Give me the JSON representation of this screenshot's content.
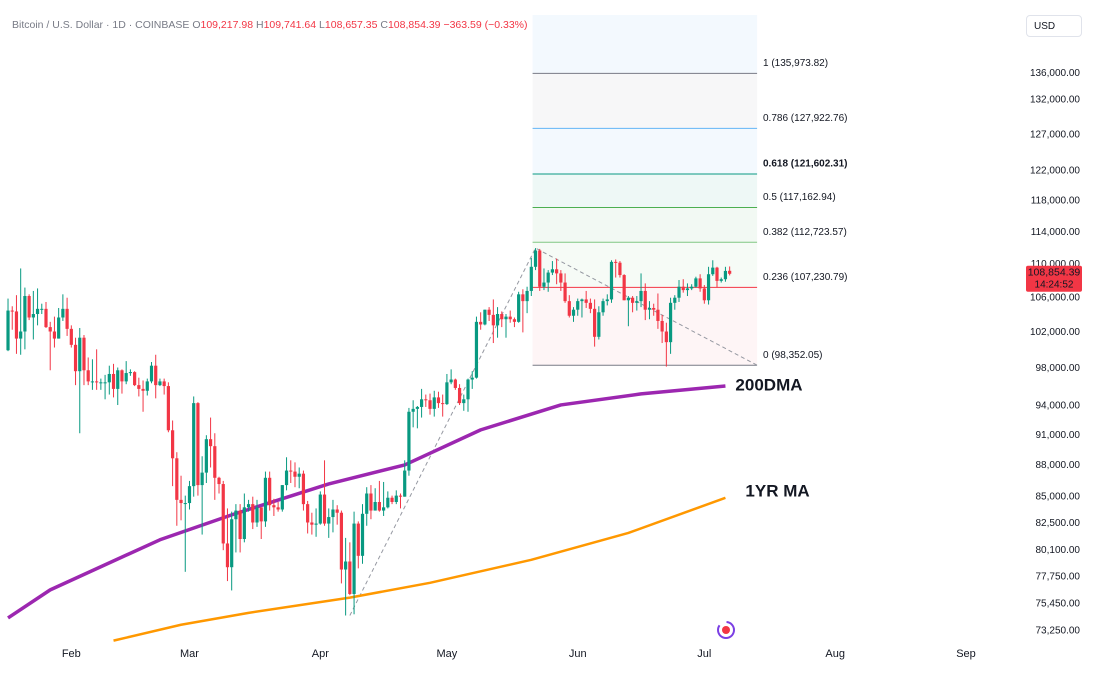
{
  "chart_data": {
    "type": "candlestick",
    "header": {
      "symbol": "Bitcoin / U.S. Dollar · 1D · COINBASE",
      "ohlc_legend": [
        {
          "key": "O",
          "value": "109,217.98"
        },
        {
          "key": "H",
          "value": "109,741.64"
        },
        {
          "key": "L",
          "value": "108,657.35"
        },
        {
          "key": "C",
          "value": "108,854.39"
        }
      ],
      "change": "−363.59 (−0.33%)"
    },
    "currency": "USD",
    "up_color": "#089981",
    "down_color": "#f23645",
    "log_scale": true,
    "xlim": [
      -1.9,
      239.8
    ],
    "xticks": [
      {
        "value": 15,
        "label": "Feb"
      },
      {
        "value": 43,
        "label": "Mar"
      },
      {
        "value": 74,
        "label": "Apr"
      },
      {
        "value": 104,
        "label": "May"
      },
      {
        "value": 135,
        "label": "Jun"
      },
      {
        "value": 165,
        "label": "Jul"
      },
      {
        "value": 196,
        "label": "Aug"
      },
      {
        "value": 227,
        "label": "Sep"
      }
    ],
    "ylim": [
      72100,
      147500
    ],
    "yticks": [
      {
        "value": 136000,
        "label": "136,000.00"
      },
      {
        "value": 132000,
        "label": "132,000.00"
      },
      {
        "value": 127000,
        "label": "127,000.00"
      },
      {
        "value": 122000,
        "label": "122,000.00"
      },
      {
        "value": 118000,
        "label": "118,000.00"
      },
      {
        "value": 114000,
        "label": "114,000.00"
      },
      {
        "value": 110000,
        "label": "110,000.00"
      },
      {
        "value": 106000,
        "label": "106,000.00"
      },
      {
        "value": 102000,
        "label": "102,000.00"
      },
      {
        "value": 98000,
        "label": "98,000.00"
      },
      {
        "value": 94000,
        "label": "94,000.00"
      },
      {
        "value": 91000,
        "label": "91,000.00"
      },
      {
        "value": 88000,
        "label": "88,000.00"
      },
      {
        "value": 85000,
        "label": "85,000.00"
      },
      {
        "value": 82500,
        "label": "82,500.00"
      },
      {
        "value": 80100,
        "label": "80,100.00"
      },
      {
        "value": 77750,
        "label": "77,750.00"
      },
      {
        "value": 75450,
        "label": "75,450.00"
      },
      {
        "value": 73250,
        "label": "73,250.00"
      }
    ],
    "last_price": {
      "value": 108854.39,
      "label": "108,854.39",
      "countdown": "14:24:52",
      "color": "#f23645"
    },
    "ohlc": [
      [
        100000,
        105900,
        99900,
        104500
      ],
      [
        104500,
        105000,
        102300,
        104400
      ],
      [
        104400,
        106300,
        99600,
        101300
      ],
      [
        101300,
        109500,
        99500,
        102100
      ],
      [
        102100,
        107200,
        100100,
        106200
      ],
      [
        106200,
        106400,
        103400,
        103700
      ],
      [
        103700,
        106800,
        101200,
        104100
      ],
      [
        104100,
        107100,
        102800,
        104700
      ],
      [
        104700,
        105300,
        104100,
        104700
      ],
      [
        104700,
        105500,
        102500,
        102600
      ],
      [
        102600,
        103200,
        97800,
        102100
      ],
      [
        102100,
        103800,
        100300,
        101300
      ],
      [
        101300,
        104800,
        101300,
        103700
      ],
      [
        103700,
        106400,
        103300,
        104700
      ],
      [
        104700,
        106000,
        101600,
        102400
      ],
      [
        102400,
        102800,
        100300,
        100600
      ],
      [
        100600,
        101400,
        96200,
        97700
      ],
      [
        97700,
        102500,
        91200,
        101400
      ],
      [
        101400,
        101700,
        96200,
        97800
      ],
      [
        97800,
        99200,
        96200,
        96600
      ],
      [
        96600,
        99000,
        95700,
        96600
      ],
      [
        96600,
        100100,
        95700,
        96500
      ],
      [
        96500,
        96900,
        95700,
        96500
      ],
      [
        96500,
        97300,
        94700,
        96500
      ],
      [
        96500,
        98300,
        95200,
        97400
      ],
      [
        97400,
        98500,
        94900,
        95800
      ],
      [
        95800,
        98100,
        94100,
        97800
      ],
      [
        97800,
        97900,
        95300,
        96600
      ],
      [
        96600,
        98800,
        96300,
        97500
      ],
      [
        97500,
        97900,
        97200,
        97600
      ],
      [
        97600,
        97700,
        96100,
        96200
      ],
      [
        96200,
        97000,
        95000,
        95800
      ],
      [
        95800,
        96700,
        93400,
        95600
      ],
      [
        95600,
        96900,
        95100,
        96600
      ],
      [
        96600,
        98700,
        96400,
        98300
      ],
      [
        98300,
        99500,
        94800,
        96200
      ],
      [
        96200,
        96900,
        96100,
        96600
      ],
      [
        96600,
        96900,
        95200,
        96100
      ],
      [
        96100,
        96500,
        91300,
        91500
      ],
      [
        91500,
        92500,
        86000,
        88700
      ],
      [
        88700,
        89300,
        82300,
        84700
      ],
      [
        84700,
        87000,
        82800,
        84400
      ],
      [
        84400,
        85100,
        78200,
        84400
      ],
      [
        84400,
        86500,
        83800,
        86000
      ],
      [
        86000,
        95000,
        85000,
        94300
      ],
      [
        94300,
        94400,
        85100,
        86100
      ],
      [
        86100,
        88900,
        81500,
        87300
      ],
      [
        87300,
        91000,
        86300,
        90600
      ],
      [
        90600,
        92800,
        87800,
        89900
      ],
      [
        89900,
        91200,
        84700,
        86800
      ],
      [
        86800,
        86900,
        85300,
        86200
      ],
      [
        86200,
        86500,
        80100,
        80700
      ],
      [
        80700,
        83900,
        77400,
        78600
      ],
      [
        78600,
        83600,
        76600,
        82900
      ],
      [
        82900,
        84300,
        79900,
        83700
      ],
      [
        83700,
        84300,
        79900,
        81100
      ],
      [
        81100,
        85300,
        80800,
        84000
      ],
      [
        84000,
        84700,
        83600,
        84300
      ],
      [
        84300,
        85000,
        82000,
        82600
      ],
      [
        82600,
        84700,
        82200,
        84000
      ],
      [
        84000,
        84000,
        81100,
        82700
      ],
      [
        82700,
        87400,
        82200,
        86800
      ],
      [
        86800,
        87400,
        83700,
        84200
      ],
      [
        84200,
        84800,
        83200,
        84000
      ],
      [
        84000,
        84500,
        83600,
        83800
      ],
      [
        83800,
        86100,
        83600,
        86100
      ],
      [
        86100,
        88800,
        85600,
        87500
      ],
      [
        87500,
        88500,
        86300,
        87400
      ],
      [
        87400,
        88300,
        85900,
        86900
      ],
      [
        86900,
        87800,
        85800,
        87200
      ],
      [
        87200,
        87500,
        83700,
        84300
      ],
      [
        84300,
        84600,
        81600,
        82600
      ],
      [
        82600,
        83500,
        81500,
        82400
      ],
      [
        82400,
        83900,
        81300,
        82500
      ],
      [
        82500,
        85500,
        82400,
        85200
      ],
      [
        85200,
        88500,
        82300,
        82500
      ],
      [
        82500,
        83900,
        81200,
        83100
      ],
      [
        83100,
        84700,
        81700,
        83800
      ],
      [
        83800,
        84200,
        82400,
        83500
      ],
      [
        83500,
        83700,
        77200,
        78400
      ],
      [
        78400,
        81200,
        74500,
        79100
      ],
      [
        79100,
        80800,
        76200,
        76300
      ],
      [
        76300,
        83600,
        74600,
        82500
      ],
      [
        82500,
        82700,
        78500,
        79600
      ],
      [
        79600,
        84300,
        78900,
        83400
      ],
      [
        83400,
        85900,
        82300,
        85300
      ],
      [
        85300,
        86100,
        82900,
        83700
      ],
      [
        83700,
        85800,
        83700,
        84500
      ],
      [
        84500,
        86500,
        83600,
        83700
      ],
      [
        83700,
        86400,
        83200,
        84000
      ],
      [
        84000,
        85500,
        83900,
        84900
      ],
      [
        84900,
        85100,
        84300,
        84500
      ],
      [
        84500,
        85600,
        84300,
        85100
      ],
      [
        85100,
        85300,
        83900,
        85000
      ],
      [
        85000,
        88500,
        85000,
        87500
      ],
      [
        87500,
        93800,
        87000,
        93400
      ],
      [
        93400,
        94600,
        91800,
        93700
      ],
      [
        93700,
        94000,
        91700,
        93900
      ],
      [
        93900,
        95800,
        92800,
        94700
      ],
      [
        94700,
        95200,
        93900,
        94600
      ],
      [
        94600,
        95300,
        93100,
        93700
      ],
      [
        93700,
        95600,
        92900,
        94900
      ],
      [
        94900,
        95500,
        93800,
        94300
      ],
      [
        94300,
        95200,
        92900,
        94200
      ],
      [
        94200,
        97400,
        94100,
        96500
      ],
      [
        96500,
        97900,
        96300,
        96800
      ],
      [
        96800,
        96900,
        95700,
        95900
      ],
      [
        95900,
        96300,
        94100,
        94300
      ],
      [
        94300,
        95200,
        93500,
        94700
      ],
      [
        94700,
        96900,
        93400,
        96800
      ],
      [
        96800,
        97700,
        95800,
        97000
      ],
      [
        97000,
        103800,
        96900,
        103200
      ],
      [
        103200,
        104300,
        102300,
        102900
      ],
      [
        102900,
        104600,
        102800,
        104600
      ],
      [
        104600,
        104900,
        103300,
        104000
      ],
      [
        104000,
        105800,
        100800,
        102800
      ],
      [
        102800,
        104900,
        101400,
        104100
      ],
      [
        104100,
        104400,
        102600,
        103500
      ],
      [
        103500,
        104100,
        101400,
        103800
      ],
      [
        103800,
        104500,
        103100,
        103500
      ],
      [
        103500,
        103700,
        102600,
        103200
      ],
      [
        103200,
        106700,
        103100,
        106400
      ],
      [
        106400,
        107000,
        102000,
        105600
      ],
      [
        105600,
        107300,
        104200,
        106800
      ],
      [
        106800,
        110800,
        106200,
        109700
      ],
      [
        109700,
        112000,
        109300,
        111700
      ],
      [
        111700,
        111900,
        106800,
        107300
      ],
      [
        107300,
        109500,
        106900,
        107800
      ],
      [
        107800,
        109300,
        106700,
        109000
      ],
      [
        109000,
        110400,
        108700,
        109400
      ],
      [
        109400,
        110700,
        107600,
        108900
      ],
      [
        108900,
        109300,
        106800,
        107800
      ],
      [
        107800,
        108900,
        105400,
        105600
      ],
      [
        105600,
        106300,
        103700,
        103900
      ],
      [
        103900,
        104900,
        103200,
        104600
      ],
      [
        104600,
        105900,
        103900,
        105600
      ],
      [
        105600,
        105900,
        103700,
        105800
      ],
      [
        105800,
        106800,
        104800,
        105400
      ],
      [
        105400,
        105900,
        104200,
        104700
      ],
      [
        104700,
        105800,
        100400,
        101500
      ],
      [
        101500,
        105000,
        101200,
        104300
      ],
      [
        104300,
        105900,
        103900,
        105600
      ],
      [
        105600,
        106400,
        105100,
        105800
      ],
      [
        105800,
        110500,
        105400,
        110300
      ],
      [
        110300,
        110600,
        108400,
        110200
      ],
      [
        110200,
        110400,
        108400,
        108700
      ],
      [
        108700,
        108800,
        105700,
        105700
      ],
      [
        105700,
        106200,
        102700,
        106000
      ],
      [
        106000,
        106200,
        104300,
        105400
      ],
      [
        105400,
        106200,
        104500,
        105600
      ],
      [
        105600,
        108900,
        104900,
        106800
      ],
      [
        106800,
        107700,
        103400,
        104600
      ],
      [
        104600,
        105600,
        103500,
        104800
      ],
      [
        104800,
        105300,
        103900,
        104600
      ],
      [
        104600,
        106500,
        102400,
        103300
      ],
      [
        103300,
        104000,
        100800,
        102100
      ],
      [
        102100,
        103100,
        98200,
        100900
      ],
      [
        100900,
        106000,
        99600,
        105400
      ],
      [
        105400,
        106300,
        104600,
        106000
      ],
      [
        106000,
        108100,
        105500,
        107300
      ],
      [
        107300,
        108200,
        106600,
        106900
      ],
      [
        106900,
        107700,
        106200,
        107100
      ],
      [
        107100,
        107600,
        106900,
        107300
      ],
      [
        107300,
        108500,
        107200,
        108300
      ],
      [
        108300,
        108800,
        106700,
        107100
      ],
      [
        107100,
        107500,
        105300,
        105700
      ],
      [
        105700,
        109700,
        105200,
        108800
      ],
      [
        108800,
        110500,
        108600,
        109600
      ],
      [
        109600,
        109700,
        107200,
        108000
      ],
      [
        108000,
        108400,
        107800,
        108200
      ],
      [
        108200,
        109700,
        107900,
        109200
      ],
      [
        109217.98,
        109741.64,
        108657.35,
        108854.39
      ]
    ],
    "series": [
      {
        "name": "200DMA",
        "color": "#9c27b0",
        "x": [
          0,
          10,
          36,
          53,
          76,
          94,
          112,
          131,
          150,
          170
        ],
        "values": [
          74300,
          76650,
          81030,
          83300,
          86210,
          88050,
          91540,
          94110,
          95270,
          96110
        ]
      },
      {
        "name": "1YR MA",
        "color": "#ff9800",
        "x": [
          25,
          41,
          57,
          81,
          100,
          124,
          147,
          170
        ],
        "values": [
          72450,
          73740,
          74720,
          75990,
          77250,
          79250,
          81650,
          84890
        ]
      }
    ],
    "trend": {
      "x": [
        81,
        125,
        177.5
      ],
      "values": [
        74500,
        112000,
        98352.05
      ]
    },
    "fib": {
      "x_range": [
        124.3,
        177.5
      ],
      "levels": [
        {
          "price": 135973.82,
          "label": "1 (135,973.82)",
          "color": "#787b86",
          "fill": "rgba(120,123,134,0.06)"
        },
        {
          "price": 127922.76,
          "label": "0.786 (127,922.76)",
          "color": "#64b5f6",
          "fill": "rgba(100,181,246,0.08)"
        },
        {
          "price": 121602.31,
          "label": "0.618 (121,602.31)",
          "color": "#089981",
          "fill": "rgba(8,153,129,0.07)"
        },
        {
          "price": 117162.94,
          "label": "0.5 (117,162.94)",
          "color": "#4caf50",
          "fill": "rgba(76,175,80,0.07)"
        },
        {
          "price": 112723.57,
          "label": "0.382 (112,723.57)",
          "color": "#81c784",
          "fill": "rgba(129,199,132,0.07)"
        },
        {
          "price": 107230.79,
          "label": "0.236 (107,230.79)",
          "color": "#f23645",
          "fill": "rgba(242,54,69,0.05)"
        },
        {
          "price": 98352.05,
          "label": "0 (98,352.05)",
          "color": "#787b86",
          "fill": "none"
        }
      ]
    }
  }
}
